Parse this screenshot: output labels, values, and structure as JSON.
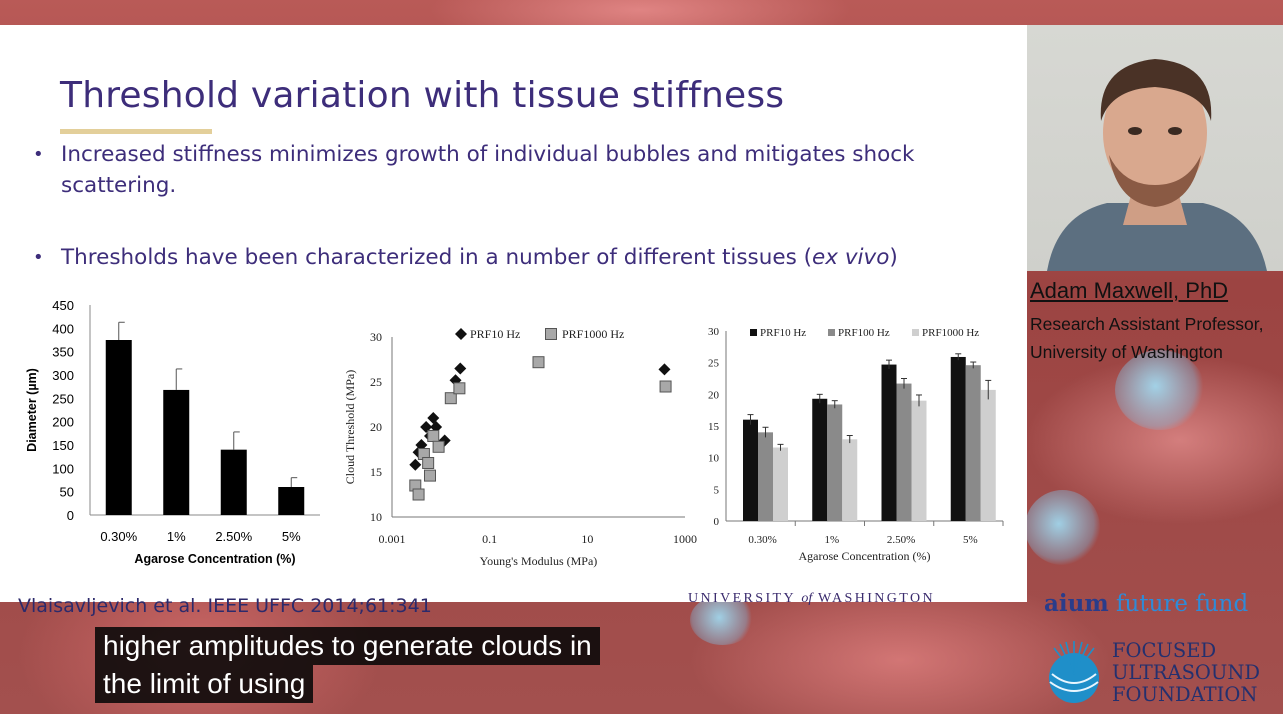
{
  "slide": {
    "title": "Threshold variation with tissue stiffness",
    "bullets": [
      {
        "text": "Increased stiffness minimizes growth of individual bubbles and mitigates shock scattering."
      },
      {
        "text_before": "Thresholds have been characterized in a number of different tissues (",
        "emph": "ex vivo",
        "text_after": ")"
      }
    ],
    "citation": "Vlaisavljevich et al. IEEE UFFC 2014;61:341",
    "footer_logo": {
      "left": "UNIVERSITY",
      "of": "of",
      "right": "WASHINGTON"
    }
  },
  "speaker": {
    "name": "Adam Maxwell, PhD",
    "role_line1": "Research Assistant Professor,",
    "role_line2": "University of Washington"
  },
  "sponsors": {
    "aium_a": "aium",
    "aium_b": "future fund",
    "fus_lines": [
      "FOCUSED",
      "ULTRASOUND",
      "FOUNDATION"
    ]
  },
  "caption": {
    "line1": "higher amplitudes to generate clouds in",
    "line2": "the limit of using"
  },
  "colors": {
    "title": "#3d2d7a",
    "accent_rule": "#e3cf9a",
    "caption_bg": "#080808"
  },
  "chart_data": [
    {
      "type": "bar",
      "categories": [
        "0.30%",
        "1%",
        "2.50%",
        "5%"
      ],
      "values": [
        375,
        268,
        140,
        60
      ],
      "errors": [
        38,
        45,
        38,
        20
      ],
      "xlabel": "Agarose Concentration (%)",
      "ylabel": "Diameter (µm)",
      "ylim": [
        0,
        450
      ],
      "yticks": [
        0,
        50,
        100,
        150,
        200,
        250,
        300,
        350,
        400,
        450
      ]
    },
    {
      "type": "scatter",
      "xscale": "log",
      "xlim": [
        0.001,
        1000
      ],
      "ylim": [
        10,
        30
      ],
      "xticks": [
        "0.001",
        "0.1",
        "10",
        "1000"
      ],
      "yticks": [
        10,
        15,
        20,
        25,
        30
      ],
      "xlabel": "Young's Modulus (MPa)",
      "ylabel": "Cloud Threshold (MPa)",
      "series": [
        {
          "name": "PRF10 Hz",
          "marker": "diamond",
          "x": [
            0.003,
            0.0035,
            0.004,
            0.005,
            0.006,
            0.007,
            0.008,
            0.012,
            0.02,
            0.025,
            380
          ],
          "y": [
            15.8,
            17.2,
            18.0,
            20.0,
            19.0,
            21.0,
            20.0,
            18.5,
            25.2,
            26.5,
            26.4
          ]
        },
        {
          "name": "PRF1000 Hz",
          "marker": "square",
          "x": [
            0.003,
            0.0035,
            0.0045,
            0.0055,
            0.006,
            0.007,
            0.009,
            0.016,
            0.024,
            1.0,
            400
          ],
          "y": [
            13.5,
            12.5,
            17.0,
            16.0,
            14.6,
            19.0,
            17.8,
            23.2,
            24.3,
            27.2,
            24.5
          ]
        }
      ]
    },
    {
      "type": "bar",
      "categories": [
        "0.30%",
        "1%",
        "2.50%",
        "5%"
      ],
      "xlabel": "Agarose Concentration (%)",
      "ylim": [
        0,
        30
      ],
      "yticks": [
        0,
        5,
        10,
        15,
        20,
        25,
        30
      ],
      "series": [
        {
          "name": "PRF10 Hz",
          "color": "#111111",
          "values": [
            16.0,
            19.3,
            24.7,
            25.9
          ],
          "errors": [
            0.8,
            0.7,
            0.7,
            0.5
          ]
        },
        {
          "name": "PRF100 Hz",
          "color": "#8a8a8a",
          "values": [
            14.0,
            18.4,
            21.7,
            24.6
          ],
          "errors": [
            0.8,
            0.6,
            0.8,
            0.5
          ]
        },
        {
          "name": "PRF1000 Hz",
          "color": "#cfcfcf",
          "values": [
            11.6,
            12.9,
            19.0,
            20.7
          ],
          "errors": [
            0.5,
            0.6,
            0.9,
            1.5
          ]
        }
      ]
    }
  ]
}
